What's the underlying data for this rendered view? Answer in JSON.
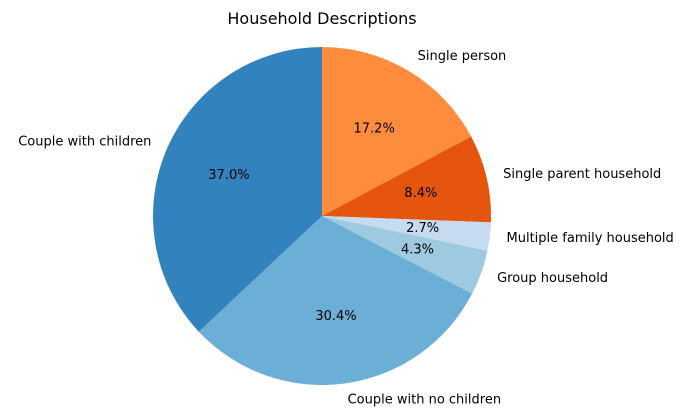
{
  "chart_data": {
    "type": "pie",
    "title": "Household Descriptions",
    "start_angle_deg": 90,
    "direction": "clockwise",
    "slices": [
      {
        "label": "Single person",
        "value": 17.2,
        "pct_label": "17.2%",
        "color": "#fd8d3c"
      },
      {
        "label": "Single parent household",
        "value": 8.4,
        "pct_label": "8.4%",
        "color": "#e6550d"
      },
      {
        "label": "Multiple family household",
        "value": 2.7,
        "pct_label": "2.7%",
        "color": "#c6dbef"
      },
      {
        "label": "Group household",
        "value": 4.3,
        "pct_label": "4.3%",
        "color": "#9ecae1"
      },
      {
        "label": "Couple with no children",
        "value": 30.4,
        "pct_label": "30.4%",
        "color": "#6baed6"
      },
      {
        "label": "Couple with children",
        "value": 37.0,
        "pct_label": "37.0%",
        "color": "#3182bd"
      }
    ]
  }
}
